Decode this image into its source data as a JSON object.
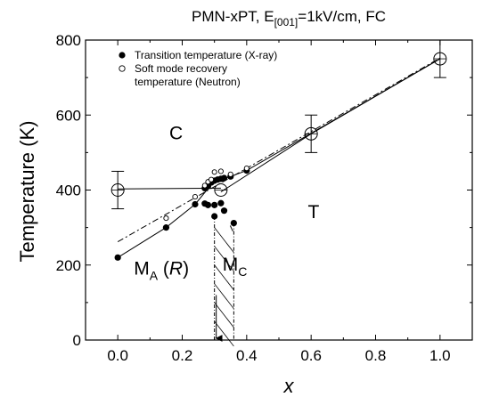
{
  "chart_data": {
    "type": "scatter",
    "title": "PMN-xPT, E",
    "title_subscript": "[001]",
    "title_suffix": "=1kV/cm, FC",
    "xlabel": "x",
    "ylabel": "Temperature (K)",
    "xlim": [
      -0.1,
      1.1
    ],
    "ylim": [
      0,
      800
    ],
    "xticks": [
      0.0,
      0.2,
      0.4,
      0.6,
      0.8,
      1.0
    ],
    "xtick_labels": [
      "0.0",
      "0.2",
      "0.4",
      "0.6",
      "0.8",
      "1.0"
    ],
    "yticks": [
      0,
      200,
      400,
      600,
      800
    ],
    "ytick_labels": [
      "0",
      "200",
      "400",
      "600",
      "800"
    ],
    "grid": false,
    "legend_position": "top-left",
    "legend": [
      {
        "marker": "filled-circle",
        "text": "Transition temperature (X-ray)"
      },
      {
        "marker": "open-circle",
        "text": "Soft mode recovery"
      },
      {
        "marker": "none",
        "text": "temperature (Neutron)"
      }
    ],
    "series": [
      {
        "name": "Transition temperature (X-ray)",
        "marker": "filled-circle",
        "points": [
          [
            0.0,
            220
          ],
          [
            0.15,
            300
          ],
          [
            0.24,
            362
          ],
          [
            0.27,
            364
          ],
          [
            0.28,
            360
          ],
          [
            0.3,
            360
          ],
          [
            0.32,
            365
          ],
          [
            0.27,
            405
          ],
          [
            0.28,
            410
          ],
          [
            0.29,
            420
          ],
          [
            0.3,
            425
          ],
          [
            0.31,
            428
          ],
          [
            0.32,
            430
          ],
          [
            0.33,
            432
          ],
          [
            0.35,
            436
          ],
          [
            0.4,
            452
          ],
          [
            0.3,
            330
          ],
          [
            0.33,
            345
          ],
          [
            0.36,
            312
          ]
        ]
      },
      {
        "name": "Soft mode recovery temperature (Neutron)",
        "marker": "open-circle-small",
        "points": [
          [
            0.15,
            325
          ],
          [
            0.24,
            382
          ],
          [
            0.27,
            412
          ],
          [
            0.28,
            422
          ],
          [
            0.29,
            428
          ],
          [
            0.3,
            448
          ],
          [
            0.32,
            450
          ],
          [
            0.35,
            442
          ],
          [
            0.4,
            458
          ]
        ]
      },
      {
        "name": "large open circles",
        "marker": "open-circle-large",
        "points": [
          [
            0.0,
            400
          ],
          [
            0.32,
            400
          ],
          [
            0.6,
            550
          ],
          [
            1.0,
            750
          ]
        ],
        "error_bars": [
          50,
          0,
          50,
          50
        ]
      }
    ],
    "lines": [
      {
        "style": "solid",
        "points": [
          [
            0.0,
            220
          ],
          [
            0.15,
            300
          ],
          [
            0.24,
            362
          ],
          [
            0.3,
            425
          ],
          [
            0.35,
            436
          ],
          [
            0.4,
            452
          ],
          [
            1.0,
            750
          ]
        ]
      },
      {
        "style": "solid",
        "points": [
          [
            0.0,
            403
          ],
          [
            0.32,
            405
          ]
        ]
      },
      {
        "style": "solid",
        "points": [
          [
            0.32,
            395
          ],
          [
            0.6,
            550
          ],
          [
            1.0,
            750
          ]
        ]
      },
      {
        "style": "dash-dot",
        "points": [
          [
            0.0,
            262
          ],
          [
            1.0,
            752
          ]
        ]
      }
    ],
    "regions": [
      {
        "label": "C",
        "x": 0.16,
        "y": 535
      },
      {
        "label": "T",
        "x": 0.59,
        "y": 325
      },
      {
        "label": "M",
        "subscript": "A",
        "suffix": " (R)",
        "x": 0.05,
        "y": 175
      },
      {
        "label": "M",
        "subscript": "C",
        "suffix": "",
        "x": 0.325,
        "y": 185
      }
    ],
    "hatched_region_x": [
      0.3,
      0.36
    ]
  }
}
